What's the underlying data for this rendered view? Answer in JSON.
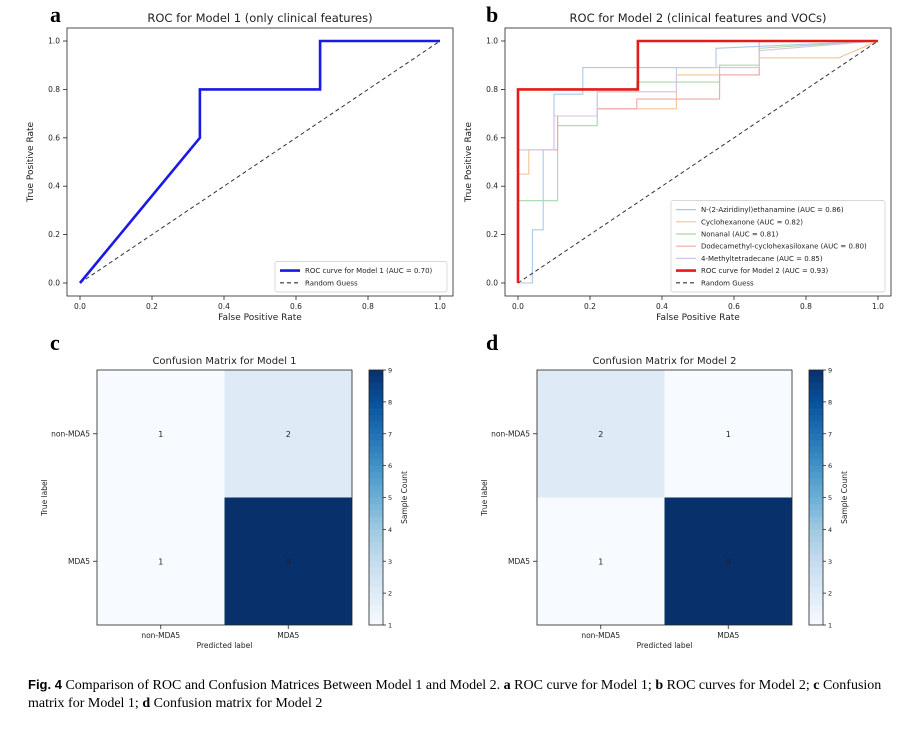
{
  "panels": {
    "a": "a",
    "b": "b",
    "c": "c",
    "d": "d"
  },
  "chart_data": [
    {
      "type": "line",
      "title": "ROC for Model 1 (only clinical features)",
      "xlabel": "False Positive Rate",
      "ylabel": "True Positive Rate",
      "xlim": [
        0,
        1
      ],
      "ylim": [
        0,
        1
      ],
      "xticks": [
        "0.0",
        "0.2",
        "0.4",
        "0.6",
        "0.8",
        "1.0"
      ],
      "yticks": [
        "0.0",
        "0.2",
        "0.4",
        "0.6",
        "0.8",
        "1.0"
      ],
      "legend_position": "lower-right",
      "series": [
        {
          "name": "ROC curve for Model 1 (AUC = 0.70)",
          "color": "#1a1ae6",
          "style": "solid",
          "x": [
            0,
            0.333,
            0.333,
            0.667,
            0.667,
            1.0
          ],
          "y": [
            0,
            0.6,
            0.8,
            0.8,
            1.0,
            1.0
          ]
        },
        {
          "name": "Random Guess",
          "color": "#333333",
          "style": "dashed",
          "x": [
            0,
            1
          ],
          "y": [
            0,
            1
          ]
        }
      ]
    },
    {
      "type": "line",
      "title": "ROC for Model 2 (clinical features and VOCs)",
      "xlabel": "False Positive Rate",
      "ylabel": "True Positive Rate",
      "xlim": [
        0,
        1
      ],
      "ylim": [
        0,
        1
      ],
      "xticks": [
        "0.0",
        "0.2",
        "0.4",
        "0.6",
        "0.8",
        "1.0"
      ],
      "yticks": [
        "0.0",
        "0.2",
        "0.4",
        "0.6",
        "0.8",
        "1.0"
      ],
      "legend_position": "lower-right",
      "series": [
        {
          "name": "N-(2-Aziridinyl)ethanamine (AUC = 0.86)",
          "color": "#a9c8e8",
          "style": "solid",
          "x": [
            0,
            0.04,
            0.04,
            0.07,
            0.07,
            0.1,
            0.1,
            0.18,
            0.18,
            0.55,
            0.55,
            1.0
          ],
          "y": [
            0,
            0,
            0.22,
            0.22,
            0.55,
            0.55,
            0.78,
            0.78,
            0.89,
            0.89,
            0.97,
            1.0
          ]
        },
        {
          "name": "Cyclohexanone (AUC = 0.82)",
          "color": "#f4c49a",
          "style": "solid",
          "x": [
            0,
            0,
            0.03,
            0.03,
            0.11,
            0.11,
            0.22,
            0.22,
            0.44,
            0.44,
            0.67,
            0.67,
            0.89,
            1.0
          ],
          "y": [
            0,
            0.45,
            0.45,
            0.55,
            0.55,
            0.69,
            0.69,
            0.72,
            0.72,
            0.86,
            0.86,
            0.93,
            0.93,
            1.0
          ]
        },
        {
          "name": "Nonanal (AUC = 0.81)",
          "color": "#a8d8a8",
          "style": "solid",
          "x": [
            0,
            0,
            0.11,
            0.11,
            0.22,
            0.22,
            0.33,
            0.33,
            0.56,
            0.56,
            0.67,
            0.67,
            1.0
          ],
          "y": [
            0,
            0.34,
            0.34,
            0.65,
            0.65,
            0.79,
            0.79,
            0.83,
            0.83,
            0.9,
            0.9,
            0.97,
            1.0
          ]
        },
        {
          "name": "Dodecamethyl-cyclohexasiloxane (AUC = 0.80)",
          "color": "#f0a8a8",
          "style": "solid",
          "x": [
            0,
            0,
            0.11,
            0.11,
            0.22,
            0.22,
            0.33,
            0.33,
            0.56,
            0.56,
            0.67,
            0.67,
            1.0
          ],
          "y": [
            0,
            0.55,
            0.55,
            0.69,
            0.69,
            0.72,
            0.72,
            0.76,
            0.76,
            0.86,
            0.86,
            1.0,
            1.0
          ]
        },
        {
          "name": "4-Methyltetradecane (AUC = 0.85)",
          "color": "#d4c4e4",
          "style": "solid",
          "x": [
            0,
            0,
            0.1,
            0.1,
            0.22,
            0.22,
            0.44,
            0.44,
            0.67,
            0.67,
            1.0
          ],
          "y": [
            0,
            0.55,
            0.55,
            0.69,
            0.69,
            0.79,
            0.79,
            0.89,
            0.89,
            0.96,
            1.0
          ]
        },
        {
          "name": "ROC curve for Model 2 (AUC = 0.93)",
          "color": "#e61a1a",
          "style": "solid",
          "x": [
            0,
            0,
            0.333,
            0.333,
            1.0
          ],
          "y": [
            0,
            0.8,
            0.8,
            1.0,
            1.0
          ]
        },
        {
          "name": "Random Guess",
          "color": "#333333",
          "style": "dashed",
          "x": [
            0,
            1
          ],
          "y": [
            0,
            1
          ]
        }
      ]
    },
    {
      "type": "heatmap",
      "title": "Confusion Matrix for Model 1",
      "xlabel": "Predicted label",
      "ylabel": "True label",
      "x_categories": [
        "non-MDA5",
        "MDA5"
      ],
      "y_categories": [
        "non-MDA5",
        "MDA5"
      ],
      "values": [
        [
          1,
          2
        ],
        [
          1,
          9
        ]
      ],
      "colorbar": {
        "label": "Sample Count",
        "min": 1,
        "max": 9,
        "ticks": [
          "1",
          "2",
          "3",
          "4",
          "5",
          "6",
          "7",
          "8",
          "9"
        ],
        "colormap": "Blues"
      }
    },
    {
      "type": "heatmap",
      "title": "Confusion Matrix for Model 2",
      "xlabel": "Predicted label",
      "ylabel": "True label",
      "x_categories": [
        "non-MDA5",
        "MDA5"
      ],
      "y_categories": [
        "non-MDA5",
        "MDA5"
      ],
      "values": [
        [
          2,
          1
        ],
        [
          1,
          9
        ]
      ],
      "colorbar": {
        "label": "Sample Count",
        "min": 1,
        "max": 9,
        "ticks": [
          "1",
          "2",
          "3",
          "4",
          "5",
          "6",
          "7",
          "8",
          "9"
        ],
        "colormap": "Blues"
      }
    }
  ],
  "caption": {
    "fig_label": "Fig. 4",
    "parts": [
      {
        "bold": false,
        "text": "  Comparison of ROC and Confusion Matrices Between Model 1 and Model 2. "
      },
      {
        "bold": true,
        "text": "a"
      },
      {
        "bold": false,
        "text": " ROC curve for Model 1; "
      },
      {
        "bold": true,
        "text": "b"
      },
      {
        "bold": false,
        "text": " ROC curves for Model 2; "
      },
      {
        "bold": true,
        "text": "c"
      },
      {
        "bold": false,
        "text": " Confusion matrix for Model 1; "
      },
      {
        "bold": true,
        "text": "d"
      },
      {
        "bold": false,
        "text": " Confusion matrix for Model 2"
      }
    ]
  }
}
